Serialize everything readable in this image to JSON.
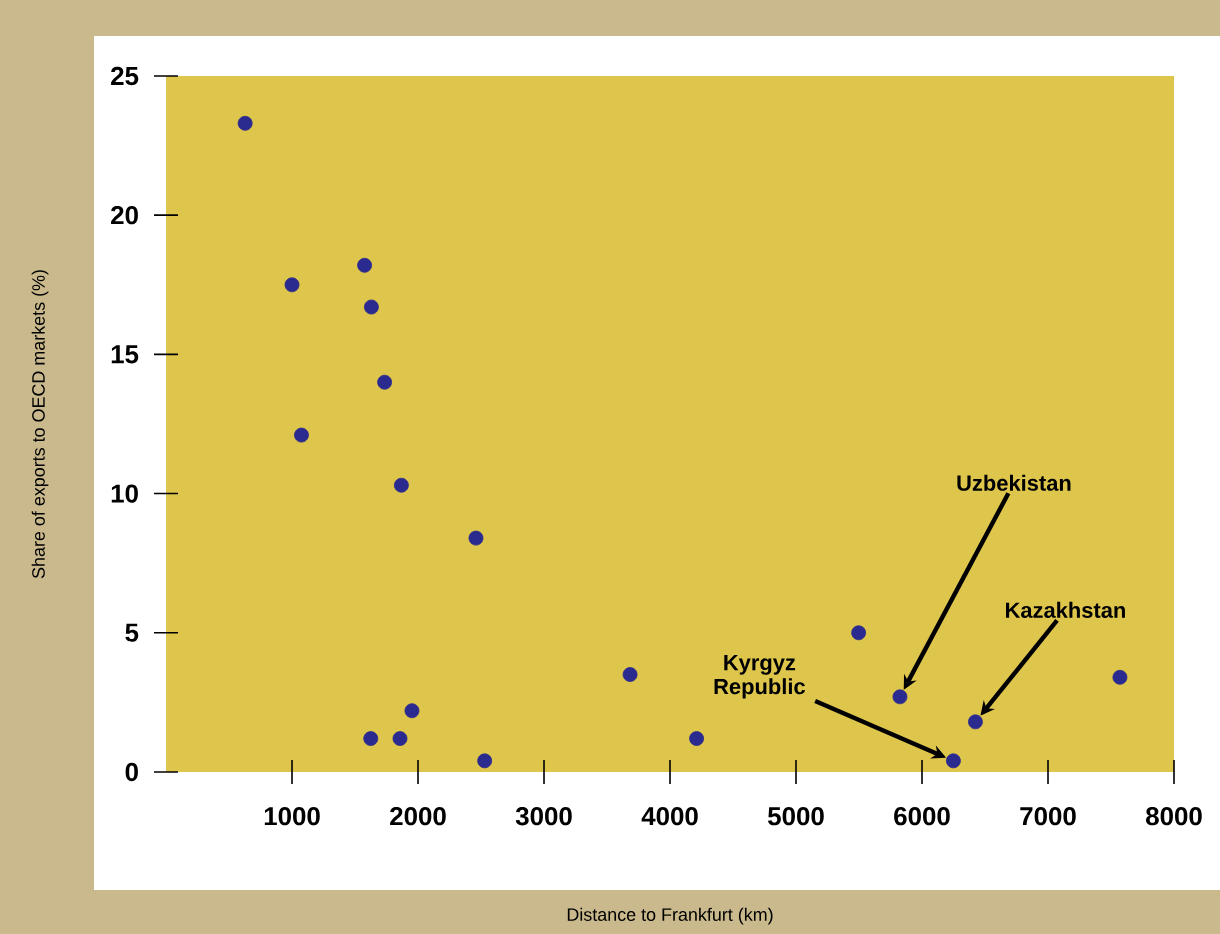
{
  "chart_data": {
    "type": "scatter",
    "xlabel": "Distance to Frankfurt (km)",
    "ylabel": "Share of exports to OECD markets (%)",
    "x": [
      628,
      1000,
      1075,
      1576,
      1630,
      1735,
      1868,
      2460,
      1625,
      1857,
      1952,
      2529,
      3683,
      4211,
      5497,
      5825,
      6249,
      6424,
      7571
    ],
    "values": [
      23.3,
      17.5,
      12.1,
      18.2,
      16.7,
      14.0,
      10.3,
      8.4,
      1.2,
      1.2,
      2.2,
      0.4,
      3.5,
      1.2,
      5.0,
      2.7,
      0.4,
      1.8,
      3.4
    ],
    "color": "#2b2a8f",
    "xlim": [
      0,
      8000
    ],
    "ylim": [
      0,
      25
    ],
    "xticks": [
      1000,
      2000,
      3000,
      4000,
      5000,
      6000,
      7000,
      8000
    ],
    "yticks": [
      0,
      5,
      10,
      15,
      20,
      25
    ],
    "annotations": [
      {
        "text": "Uzbekistan",
        "x": 5825,
        "y": 2.7
      },
      {
        "text": "Kyrgyz Republic",
        "x": 6249,
        "y": 0.4
      },
      {
        "text": "Kazakhstan",
        "x": 6424,
        "y": 1.8
      }
    ]
  }
}
